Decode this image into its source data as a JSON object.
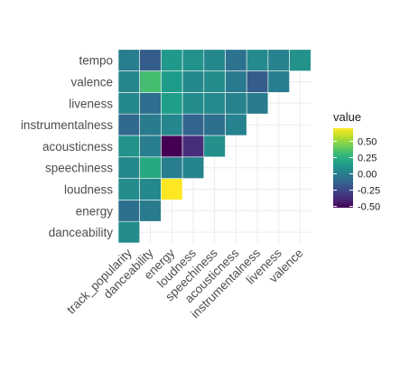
{
  "chart_data": {
    "type": "heatmap",
    "subtype": "lower-triangle correlation matrix",
    "x_categories": [
      "track_popularity",
      "danceability",
      "energy",
      "loudness",
      "speechiness",
      "acousticness",
      "instrumentalness",
      "liveness",
      "valence"
    ],
    "y_categories": [
      "danceability",
      "energy",
      "loudness",
      "speechiness",
      "acousticness",
      "instrumentalness",
      "liveness",
      "valence",
      "tempo"
    ],
    "values": [
      [
        0.07
      ],
      [
        -0.07,
        -0.01
      ],
      [
        0.07,
        0.05,
        0.7
      ],
      [
        0.05,
        0.21,
        0.0,
        0.03
      ],
      [
        0.1,
        0.0,
        -0.52,
        -0.36,
        0.09
      ],
      [
        -0.11,
        -0.01,
        0.04,
        -0.13,
        -0.07,
        0.02
      ],
      [
        0.05,
        -0.08,
        0.16,
        0.07,
        0.06,
        0.02,
        -0.01
      ],
      [
        0.04,
        0.33,
        0.15,
        0.05,
        0.07,
        -0.02,
        -0.16,
        0.0
      ],
      [
        0.0,
        -0.16,
        0.13,
        0.1,
        0.05,
        -0.06,
        0.06,
        0.02,
        0.1
      ]
    ],
    "legend": {
      "title": "value",
      "ticks": [
        0.5,
        0.25,
        0.0,
        -0.25,
        -0.5
      ],
      "tick_labels": [
        "0.50",
        "0.25",
        "0.00",
        "-0.25",
        "-0.50"
      ],
      "min": -0.52,
      "max": 0.7,
      "colormap": "viridis",
      "placement": "right"
    },
    "grid": true,
    "title": "",
    "xlabel": "",
    "ylabel": ""
  }
}
